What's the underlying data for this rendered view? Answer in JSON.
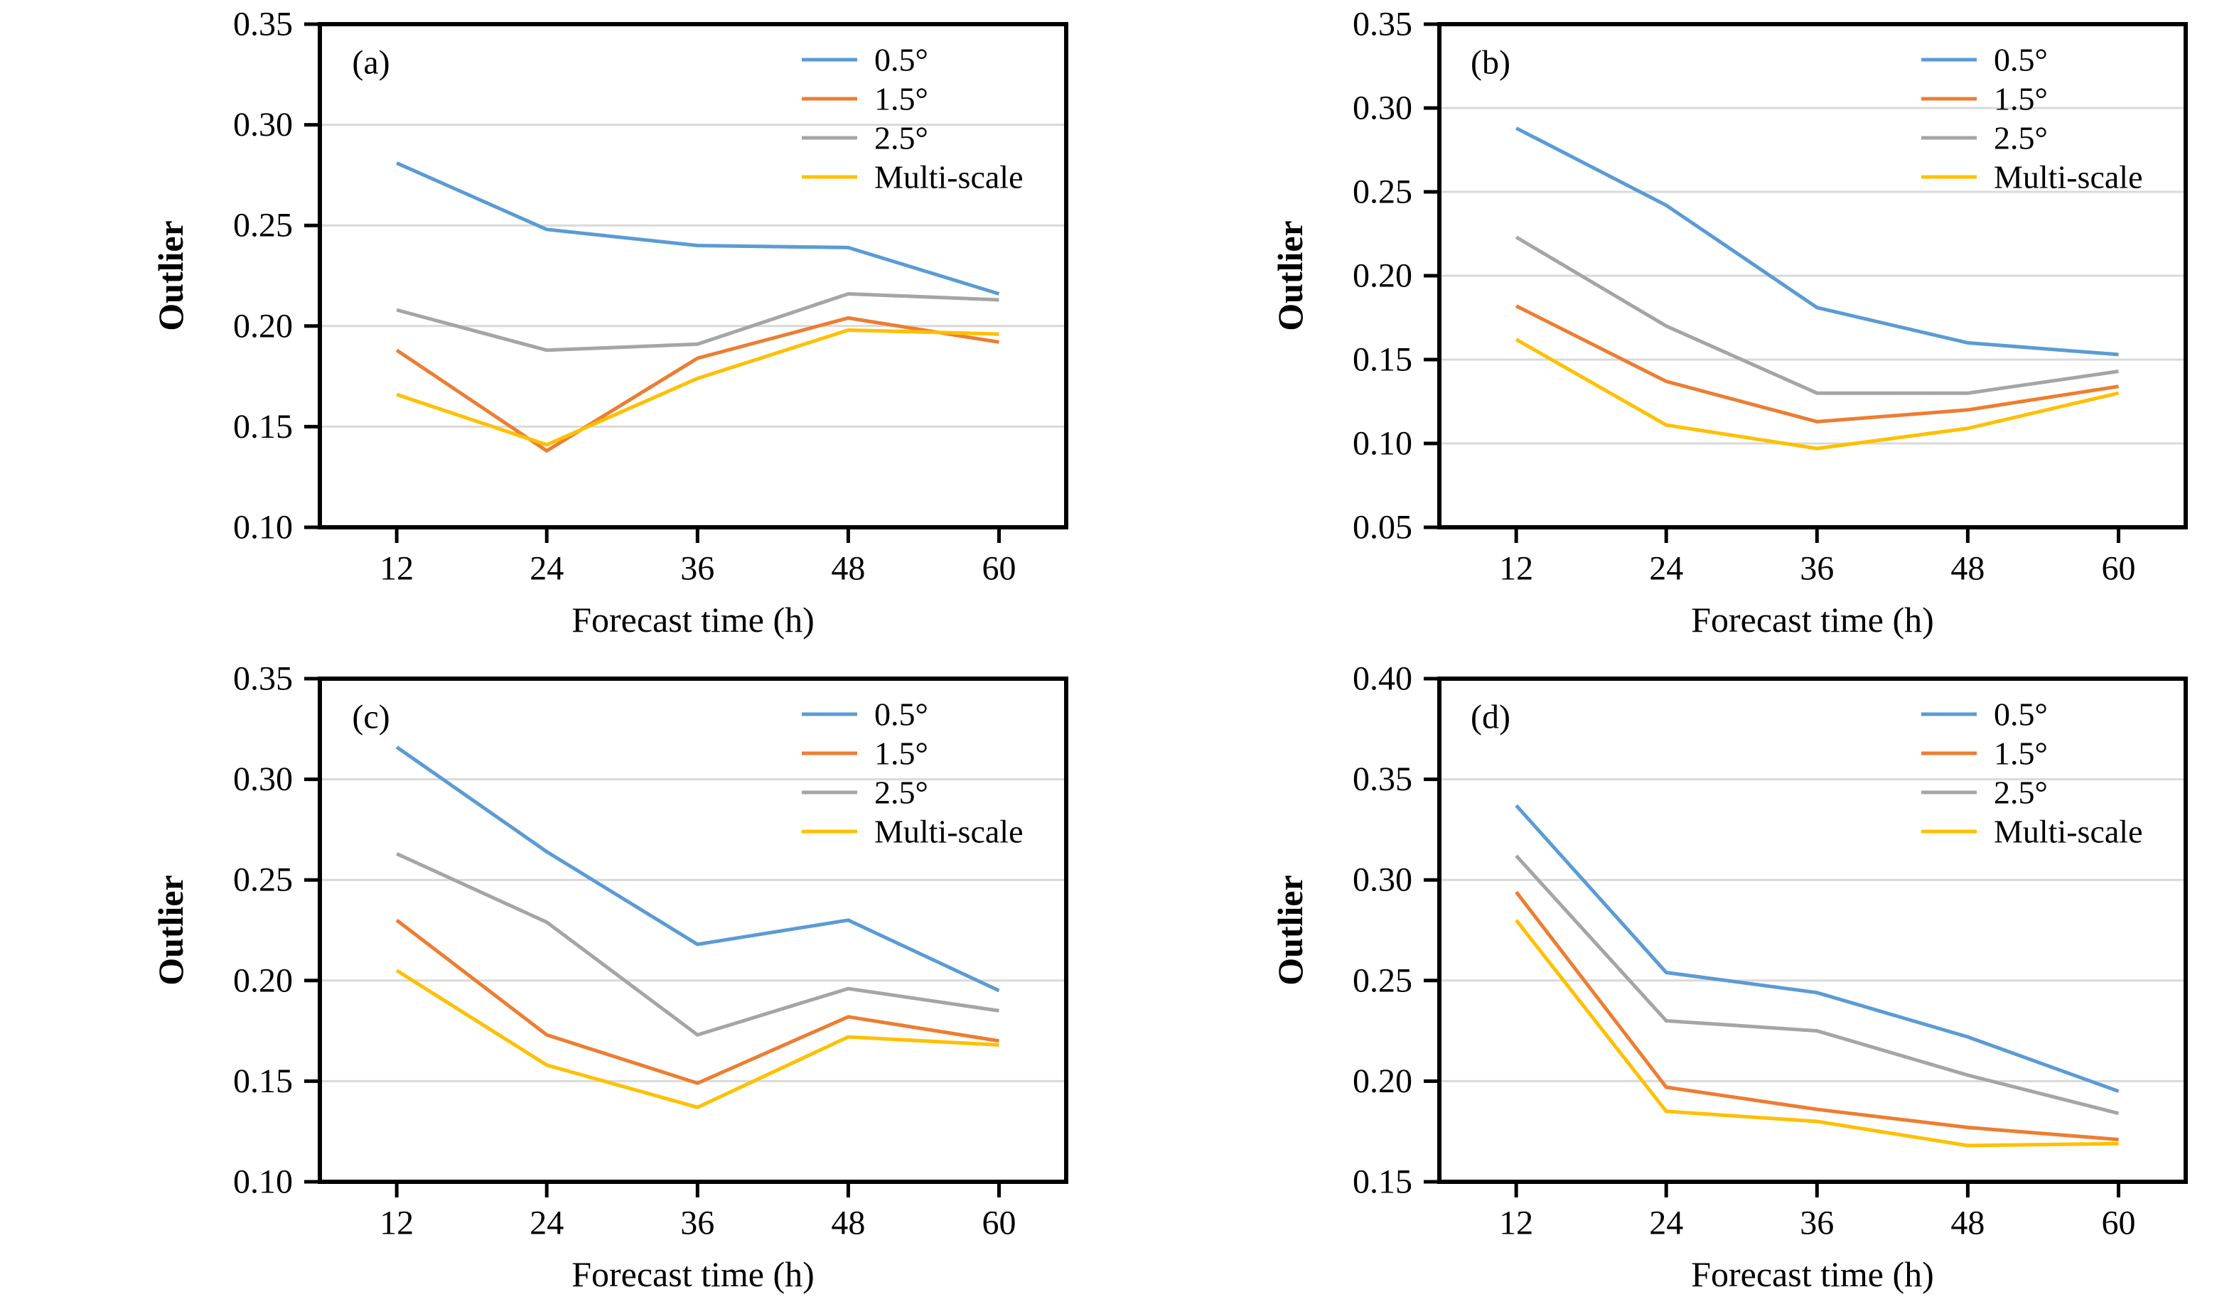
{
  "figure": {
    "background": "#ffffff",
    "gridline_color": "#D9D9D9",
    "axis_color": "#000000",
    "font_color": "#000000"
  },
  "chart_data": [
    {
      "type": "line",
      "panel_label": "(a)",
      "xlabel": "Forecast time (h)",
      "ylabel": "Outlier",
      "x": [
        12,
        24,
        36,
        48,
        60
      ],
      "ylim": [
        0.1,
        0.35
      ],
      "ytick_step": 0.05,
      "grid": true,
      "legend_position": "top-right-inside",
      "series": [
        {
          "name": "0.5°",
          "color": "#5B9BD5",
          "values": [
            0.281,
            0.248,
            0.24,
            0.239,
            0.216
          ]
        },
        {
          "name": "1.5°",
          "color": "#ED7D31",
          "values": [
            0.188,
            0.138,
            0.184,
            0.204,
            0.192
          ]
        },
        {
          "name": "2.5°",
          "color": "#A5A5A5",
          "values": [
            0.208,
            0.188,
            0.191,
            0.216,
            0.213
          ]
        },
        {
          "name": "Multi-scale",
          "color": "#FFC000",
          "values": [
            0.166,
            0.141,
            0.174,
            0.198,
            0.196
          ]
        }
      ]
    },
    {
      "type": "line",
      "panel_label": "(b)",
      "xlabel": "Forecast time (h)",
      "ylabel": "Outlier",
      "x": [
        12,
        24,
        36,
        48,
        60
      ],
      "ylim": [
        0.05,
        0.35
      ],
      "ytick_step": 0.05,
      "grid": true,
      "legend_position": "top-right-inside",
      "series": [
        {
          "name": "0.5°",
          "color": "#5B9BD5",
          "values": [
            0.288,
            0.242,
            0.181,
            0.16,
            0.153
          ]
        },
        {
          "name": "1.5°",
          "color": "#ED7D31",
          "values": [
            0.182,
            0.137,
            0.113,
            0.12,
            0.134
          ]
        },
        {
          "name": "2.5°",
          "color": "#A5A5A5",
          "values": [
            0.223,
            0.17,
            0.13,
            0.13,
            0.143
          ]
        },
        {
          "name": "Multi-scale",
          "color": "#FFC000",
          "values": [
            0.162,
            0.111,
            0.097,
            0.109,
            0.13
          ]
        }
      ]
    },
    {
      "type": "line",
      "panel_label": "(c)",
      "xlabel": "Forecast time (h)",
      "ylabel": "Outlier",
      "x": [
        12,
        24,
        36,
        48,
        60
      ],
      "ylim": [
        0.1,
        0.35
      ],
      "ytick_step": 0.05,
      "grid": true,
      "legend_position": "top-right-inside",
      "series": [
        {
          "name": "0.5°",
          "color": "#5B9BD5",
          "values": [
            0.316,
            0.264,
            0.218,
            0.23,
            0.195
          ]
        },
        {
          "name": "1.5°",
          "color": "#ED7D31",
          "values": [
            0.23,
            0.173,
            0.149,
            0.182,
            0.17
          ]
        },
        {
          "name": "2.5°",
          "color": "#A5A5A5",
          "values": [
            0.263,
            0.229,
            0.173,
            0.196,
            0.185
          ]
        },
        {
          "name": "Multi-scale",
          "color": "#FFC000",
          "values": [
            0.205,
            0.158,
            0.137,
            0.172,
            0.168
          ]
        }
      ]
    },
    {
      "type": "line",
      "panel_label": "(d)",
      "xlabel": "Forecast time (h)",
      "ylabel": "Outlier",
      "x": [
        12,
        24,
        36,
        48,
        60
      ],
      "ylim": [
        0.15,
        0.4
      ],
      "ytick_step": 0.05,
      "grid": true,
      "legend_position": "top-right-inside",
      "series": [
        {
          "name": "0.5°",
          "color": "#5B9BD5",
          "values": [
            0.337,
            0.254,
            0.244,
            0.222,
            0.195
          ]
        },
        {
          "name": "1.5°",
          "color": "#ED7D31",
          "values": [
            0.294,
            0.197,
            0.186,
            0.177,
            0.171
          ]
        },
        {
          "name": "2.5°",
          "color": "#A5A5A5",
          "values": [
            0.312,
            0.23,
            0.225,
            0.203,
            0.184
          ]
        },
        {
          "name": "Multi-scale",
          "color": "#FFC000",
          "values": [
            0.28,
            0.185,
            0.18,
            0.168,
            0.169
          ]
        }
      ]
    }
  ]
}
